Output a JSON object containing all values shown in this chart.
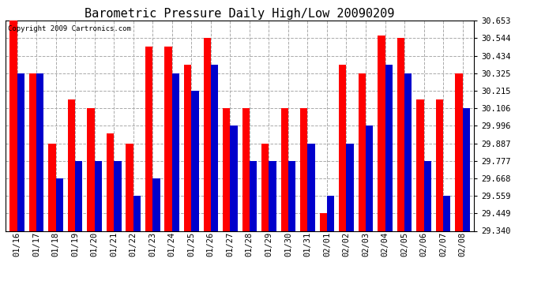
{
  "title": "Barometric Pressure Daily High/Low 20090209",
  "copyright": "Copyright 2009 Cartronics.com",
  "dates": [
    "01/16",
    "01/17",
    "01/18",
    "01/19",
    "01/20",
    "01/21",
    "01/22",
    "01/23",
    "01/24",
    "01/25",
    "01/26",
    "01/27",
    "01/28",
    "01/29",
    "01/30",
    "01/31",
    "02/01",
    "02/02",
    "02/03",
    "02/04",
    "02/05",
    "02/06",
    "02/07",
    "02/08"
  ],
  "highs": [
    30.653,
    30.325,
    29.887,
    30.16,
    30.106,
    29.95,
    29.887,
    30.49,
    30.49,
    30.38,
    30.544,
    30.106,
    30.106,
    29.887,
    30.106,
    30.106,
    29.449,
    30.38,
    30.325,
    30.56,
    30.544,
    30.16,
    30.16,
    30.325
  ],
  "lows": [
    30.325,
    30.325,
    29.668,
    29.777,
    29.777,
    29.777,
    29.559,
    29.668,
    30.325,
    30.215,
    30.38,
    29.996,
    29.777,
    29.777,
    29.777,
    29.887,
    29.559,
    29.887,
    29.996,
    30.38,
    30.325,
    29.777,
    29.559,
    30.106
  ],
  "high_color": "#ff0000",
  "low_color": "#0000cc",
  "bg_color": "#ffffff",
  "plot_bg_color": "#ffffff",
  "grid_color": "#aaaaaa",
  "ylim_min": 29.34,
  "ylim_max": 30.653,
  "yticks": [
    29.34,
    29.449,
    29.559,
    29.668,
    29.777,
    29.887,
    29.996,
    30.106,
    30.215,
    30.325,
    30.434,
    30.544,
    30.653
  ],
  "bar_width": 0.38,
  "title_fontsize": 11,
  "tick_fontsize": 7.5,
  "copyright_fontsize": 6.5
}
